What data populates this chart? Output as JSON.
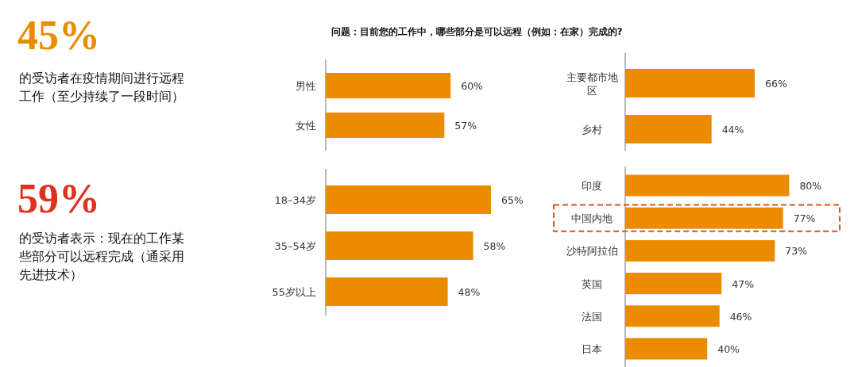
{
  "chart_data": [
    {
      "type": "other",
      "annotations": [
        "45%",
        "的受访者在疫情期间进行远程工作（至少持续了一段时间）",
        "59%",
        "的受访者表示：现在的工作某些部分可以远程完成（通采用先进技术）"
      ],
      "colors": [
        "#eb8c00",
        "#e0301e"
      ]
    },
    {
      "type": "bar",
      "orientation": "horizontal",
      "title": "问题：目前您的工作中，哪些部分是可以远程（例如：在家）完成的?",
      "categories": [
        "男性",
        "女性"
      ],
      "values": [
        60,
        57
      ],
      "value_labels": [
        "60%",
        "57%"
      ],
      "color": "#eb8c00"
    },
    {
      "type": "bar",
      "orientation": "horizontal",
      "categories": [
        "18–34岁",
        "35–54岁",
        "55岁以上"
      ],
      "values": [
        65,
        58,
        48
      ],
      "value_labels": [
        "65%",
        "58%",
        "48%"
      ],
      "color": "#eb8c00"
    },
    {
      "type": "bar",
      "orientation": "horizontal",
      "categories": [
        "主要都市地区",
        "乡村"
      ],
      "values": [
        66,
        44
      ],
      "value_labels": [
        "66%",
        "44%"
      ],
      "color": "#eb8c00"
    },
    {
      "type": "bar",
      "orientation": "horizontal",
      "categories": [
        "印度",
        "中国内地",
        "沙特阿拉伯",
        "英国",
        "法国",
        "日本"
      ],
      "values": [
        80,
        77,
        73,
        47,
        46,
        40
      ],
      "value_labels": [
        "80%",
        "77%",
        "73%",
        "47%",
        "46%",
        "40%"
      ],
      "color": "#eb8c00"
    }
  ]
}
